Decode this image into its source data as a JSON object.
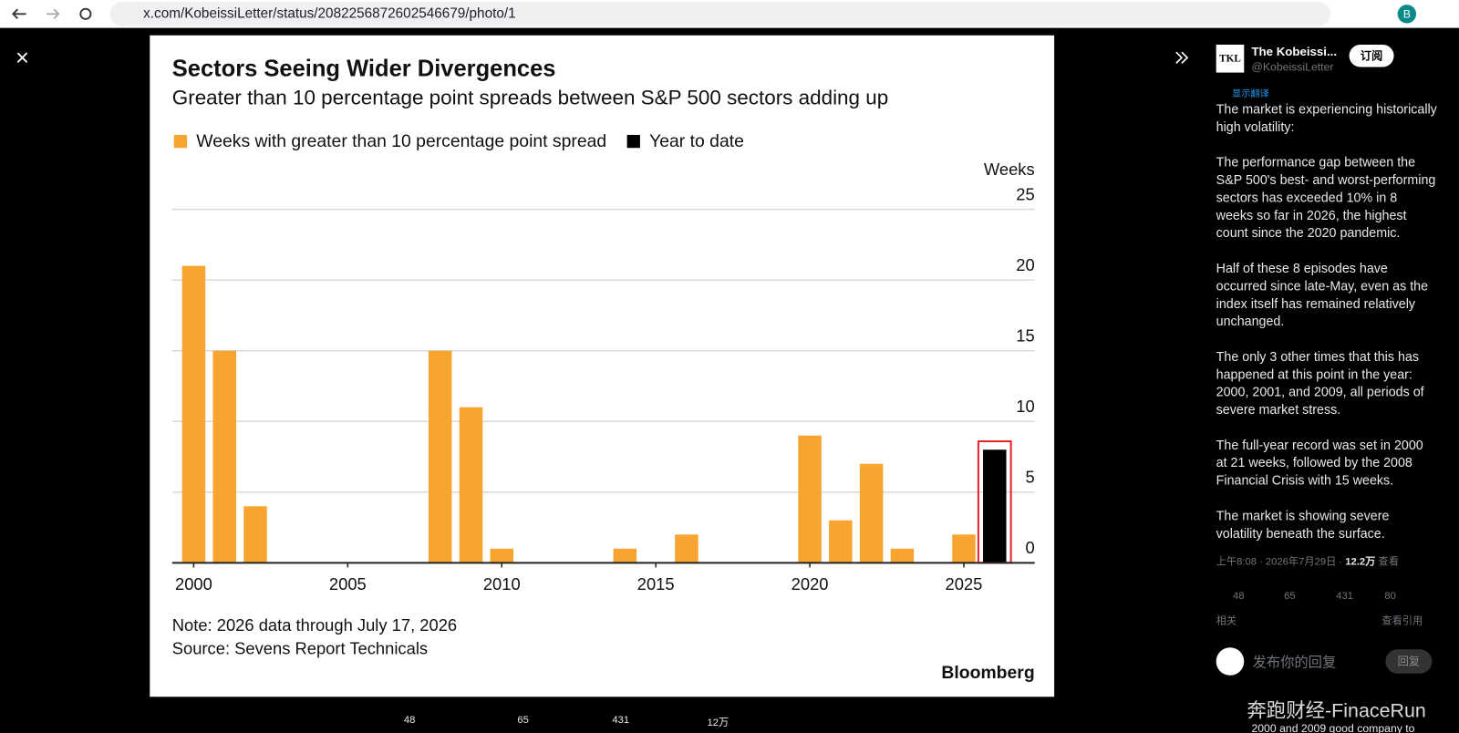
{
  "browser": {
    "url": "x.com/KobeissiLetter/status/2082256872602546679/photo/1"
  },
  "chart_data": {
    "type": "bar",
    "title": "Sectors Seeing Wider Divergences",
    "subtitle": "Greater than 10 percentage point spreads between S&P 500 sectors adding up",
    "y_label": "Weeks",
    "x": [
      2000,
      2001,
      2002,
      2008,
      2009,
      2010,
      2014,
      2016,
      2020,
      2021,
      2022,
      2023,
      2025,
      2026
    ],
    "series": [
      {
        "name": "Weeks with greater than 10 percentage point spread",
        "color": "#f7a530",
        "values": [
          21,
          15,
          4,
          15,
          11,
          1,
          1,
          2,
          9,
          3,
          7,
          1,
          2,
          null
        ]
      },
      {
        "name": "Year to date",
        "color": "#000000",
        "values": [
          null,
          null,
          null,
          null,
          null,
          null,
          null,
          null,
          null,
          null,
          null,
          null,
          null,
          8
        ]
      }
    ],
    "xlim": [
      1999.3,
      2027.3
    ],
    "xticks": [
      2000,
      2005,
      2010,
      2015,
      2020,
      2025
    ],
    "ylim": [
      0,
      25
    ],
    "yticks": [
      0,
      5,
      10,
      15,
      20,
      25
    ],
    "grid": true,
    "note": "Note: 2026 data through July 17, 2026",
    "source": "Source: Sevens Report Technicals",
    "brand": "Bloomberg"
  },
  "photo_actions": {
    "replies": "48",
    "reposts": "65",
    "likes": "431",
    "views": "12万"
  },
  "tweet": {
    "name": "The Kobeissi...",
    "handle": "@KobeissiLetter",
    "subscribe": "订阅",
    "translate": "显示翻译",
    "paragraphs": [
      "The market is experiencing historically high volatility:",
      "The performance gap between the S&P 500's best- and worst-performing sectors has exceeded 10% in 8 weeks so far in 2026, the highest count since the 2020 pandemic.",
      "Half of these 8 episodes have occurred since late-May, even as the index itself has remained relatively unchanged.",
      "The only 3 other times that this has happened at this point in the year: 2000, 2001, and 2009, all periods of severe market stress.",
      "The full-year record was set in 2000 at 21 weeks, followed by the 2008 Financial Crisis with 15 weeks.",
      "The market is showing severe volatility beneath the surface."
    ],
    "time": "上午8:08 · 2026年7月29日 · ",
    "views": "12.2万",
    "views_label": "查看",
    "stats": {
      "replies": "48",
      "reposts": "65",
      "likes": "431",
      "bookmarks": "80"
    },
    "related": "相关",
    "quotes": "查看引用",
    "reply_placeholder": "发布你的回复",
    "reply_button": "回复",
    "next_reply": "2000 and 2009 good company to"
  },
  "watermark": "奔跑财经-FinaceRun"
}
